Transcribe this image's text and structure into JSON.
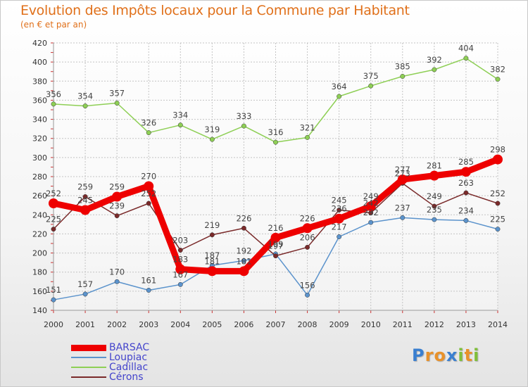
{
  "header": {
    "title": "Evolution des Impôts locaux pour la Commune par Habitant",
    "subtitle": "(en € et par an)"
  },
  "brand": {
    "letters": [
      {
        "ch": "P",
        "color": "#3a7fd0"
      },
      {
        "ch": "r",
        "color": "#e8912a"
      },
      {
        "ch": "o",
        "color": "#e8912a"
      },
      {
        "ch": "x",
        "color": "#3a7fd0"
      },
      {
        "ch": "i",
        "color": "#7fbf3a"
      },
      {
        "ch": "t",
        "color": "#e8912a"
      },
      {
        "ch": "i",
        "color": "#7fbf3a"
      }
    ]
  },
  "chart_data": {
    "type": "line",
    "title": "Evolution des Impôts locaux pour la Commune par Habitant",
    "subtitle": "(en € et par an)",
    "categories": [
      "2000",
      "2001",
      "2002",
      "2003",
      "2004",
      "2005",
      "2006",
      "2007",
      "2008",
      "2009",
      "2010",
      "2011",
      "2012",
      "2013",
      "2014"
    ],
    "ylim": [
      140,
      420
    ],
    "yticks": [
      "140",
      "160",
      "180",
      "200",
      "220",
      "240",
      "260",
      "280",
      "300",
      "320",
      "340",
      "360",
      "380",
      "400",
      "420"
    ],
    "grid": true,
    "legend_position": "bottom-left",
    "series": [
      {
        "name": "BARSAC",
        "color": "#ee0000",
        "values": [
          252,
          245,
          259,
          270,
          183,
          181,
          181,
          216,
          226,
          236,
          249,
          277,
          281,
          285,
          298
        ]
      },
      {
        "name": "Loupiac",
        "color": "#5b93cc",
        "values": [
          151,
          157,
          170,
          161,
          167,
          187,
          192,
          199,
          156,
          217,
          232,
          237,
          235,
          234,
          225
        ]
      },
      {
        "name": "Cadillac",
        "color": "#8ecf55",
        "values": [
          356,
          354,
          357,
          326,
          334,
          319,
          333,
          316,
          321,
          364,
          375,
          385,
          392,
          404,
          382
        ]
      },
      {
        "name": "Cérons",
        "color": "#7a2a2a",
        "values": [
          225,
          259,
          239,
          252,
          203,
          219,
          226,
          197,
          206,
          245,
          242,
          273,
          249,
          263,
          252
        ]
      }
    ]
  }
}
